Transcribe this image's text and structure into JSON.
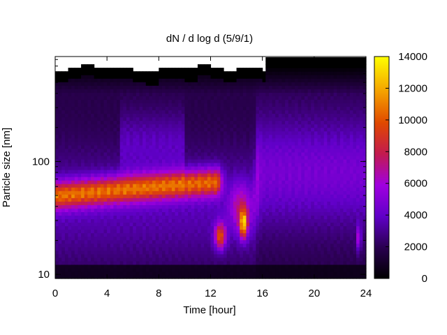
{
  "chart_data": {
    "type": "heatmap",
    "title": "dN / d log d (5/9/1)",
    "xlabel": "Time [hour]",
    "ylabel": "Particle size [nm]",
    "xlim": [
      0,
      24
    ],
    "ylim": [
      9.2,
      850
    ],
    "yscale": "log",
    "x_ticks": [
      "0",
      "4",
      "8",
      "12",
      "16",
      "20",
      "24"
    ],
    "y_ticks": [
      "10",
      "100"
    ],
    "colorbar": {
      "range": [
        0,
        14000
      ],
      "ticks": [
        "0",
        "2000",
        "4000",
        "6000",
        "8000",
        "10000",
        "12000",
        "14000"
      ],
      "palette": "black-purple-red-orange-yellow"
    },
    "features": [
      {
        "label": "accumulation mode band",
        "time_range": [
          0,
          12.5
        ],
        "size_nm": [
          40,
          75
        ],
        "peak_value": 9500
      },
      {
        "label": "nucleation burst",
        "time_range": [
          12.3,
          13.2
        ],
        "size_nm": [
          16,
          30
        ],
        "peak_value": 8500
      },
      {
        "label": "nucleation burst",
        "time_range": [
          14.2,
          14.8
        ],
        "size_nm": [
          20,
          38
        ],
        "peak_value": 10000
      },
      {
        "label": "nucleation burst",
        "time_range": [
          23.3,
          23.6
        ],
        "size_nm": [
          17,
          28
        ],
        "peak_value": 5500
      }
    ]
  }
}
